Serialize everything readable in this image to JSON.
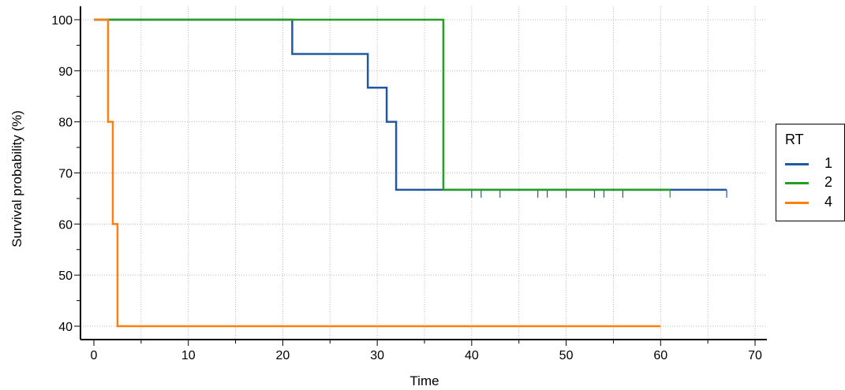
{
  "chart_data": {
    "type": "line",
    "subtype": "kaplan-meier-step",
    "title": "",
    "xlabel": "Time",
    "ylabel": "Survival probability (%)",
    "xlim": [
      0,
      70
    ],
    "ylim": [
      38,
      102
    ],
    "xticks": [
      0,
      10,
      20,
      30,
      40,
      50,
      60,
      70
    ],
    "yticks": [
      40,
      50,
      60,
      70,
      80,
      90,
      100
    ],
    "grid": true,
    "legend": {
      "title": "RT",
      "placement": "right"
    },
    "series": [
      {
        "name": "1",
        "color": "#1f5aa0",
        "steps": [
          [
            0,
            100
          ],
          [
            21,
            93.3
          ],
          [
            29,
            86.7
          ],
          [
            31,
            80
          ],
          [
            32,
            66.7
          ],
          [
            67,
            66.7
          ]
        ],
        "censored": [
          40,
          41,
          43,
          47,
          48,
          50,
          53,
          54,
          56
        ]
      },
      {
        "name": "2",
        "color": "#22a022",
        "steps": [
          [
            0,
            100
          ],
          [
            37,
            66.7
          ],
          [
            61,
            66.7
          ]
        ],
        "censored": [
          61
        ]
      },
      {
        "name": "4",
        "color": "#ff7f0e",
        "steps": [
          [
            0,
            100
          ],
          [
            1.5,
            80
          ],
          [
            2,
            60
          ],
          [
            2.5,
            40
          ],
          [
            60,
            40
          ]
        ],
        "censored": []
      }
    ]
  }
}
